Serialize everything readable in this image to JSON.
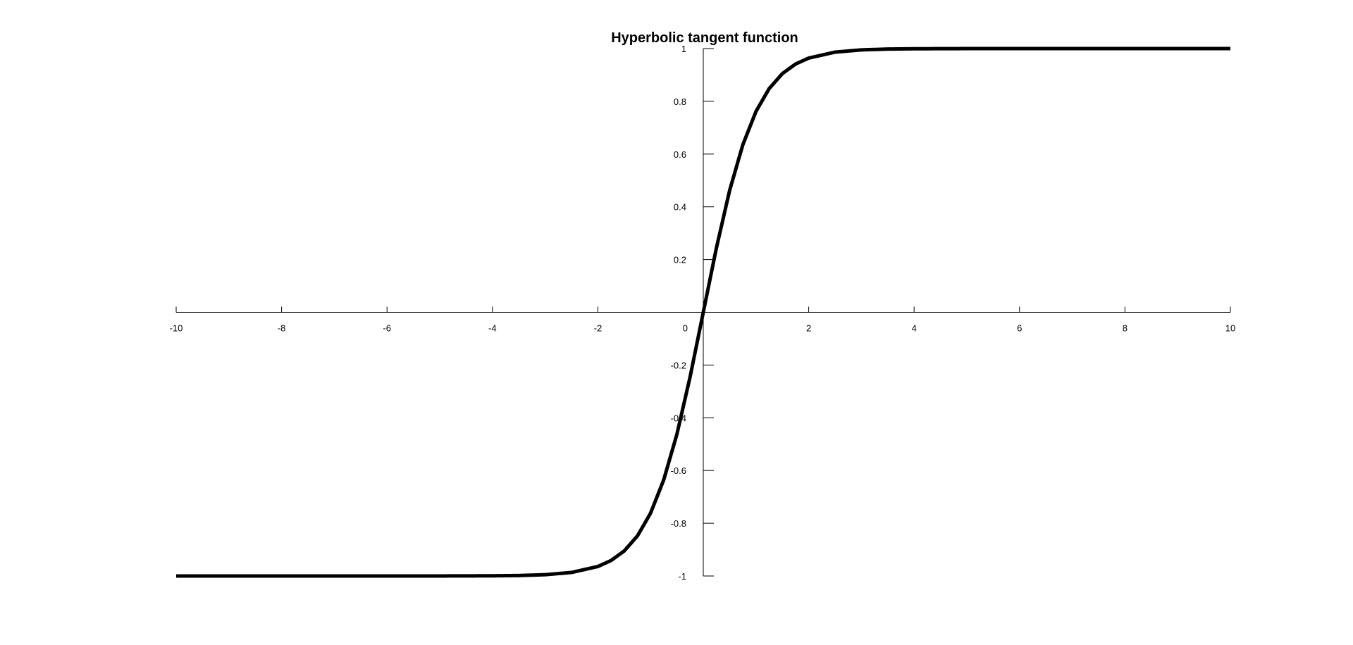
{
  "chart_data": {
    "type": "line",
    "title": "Hyperbolic tangent function",
    "xlabel": "",
    "ylabel": "",
    "xlim": [
      -10,
      10
    ],
    "ylim": [
      -1,
      1
    ],
    "grid": false,
    "x_ticks": [
      -10,
      -8,
      -6,
      -4,
      -2,
      0,
      2,
      4,
      6,
      8,
      10
    ],
    "x_tick_labels": [
      "-10",
      "-8",
      "-6",
      "-4",
      "-2",
      "0",
      "2",
      "4",
      "6",
      "8",
      "10"
    ],
    "y_ticks": [
      1,
      0.8,
      0.6,
      0.4,
      0.2,
      -0.2,
      -0.4,
      -0.6,
      -0.8,
      -1
    ],
    "y_tick_labels": [
      "1",
      "0.8",
      "0.6",
      "0.4",
      "0.2",
      "-0.2",
      "-0.4",
      "-0.6",
      "-0.8",
      "-1"
    ],
    "series": [
      {
        "color": "#000000",
        "x": [
          -10,
          -8,
          -6,
          -5,
          -4,
          -3.5,
          -3,
          -2.5,
          -2,
          -1.75,
          -1.5,
          -1.25,
          -1,
          -0.75,
          -0.5,
          -0.25,
          0,
          0.25,
          0.5,
          0.75,
          1,
          1.25,
          1.5,
          1.75,
          2,
          2.5,
          3,
          3.5,
          4,
          5,
          6,
          8,
          10
        ],
        "y": [
          -1,
          -1,
          -1,
          -0.9999,
          -0.9993,
          -0.9982,
          -0.9951,
          -0.9866,
          -0.964,
          -0.9413,
          -0.9051,
          -0.8483,
          -0.7616,
          -0.6351,
          -0.4621,
          -0.2449,
          0,
          0.2449,
          0.4621,
          0.6351,
          0.7616,
          0.8483,
          0.9051,
          0.9413,
          0.964,
          0.9866,
          0.9951,
          0.9982,
          0.9993,
          0.9999,
          1,
          1,
          1
        ]
      }
    ]
  }
}
